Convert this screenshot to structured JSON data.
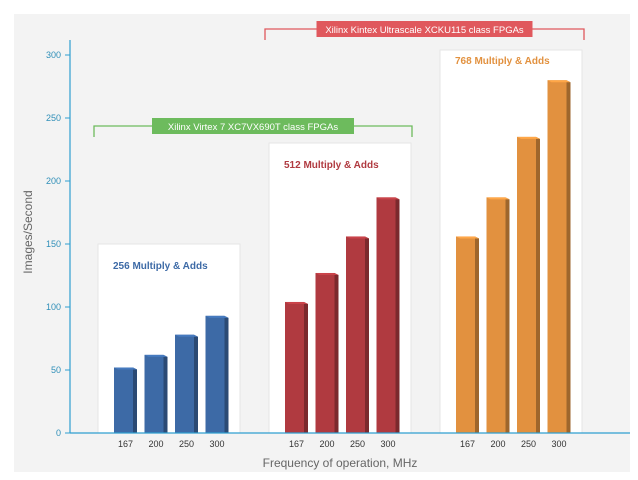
{
  "chart_data": {
    "type": "bar",
    "title": "",
    "xlabel": "Frequency of operation, MHz",
    "ylabel": "Images/Second",
    "ylim": [
      0,
      300
    ],
    "yticks": [
      0,
      50,
      100,
      150,
      200,
      250,
      300
    ],
    "grid": false,
    "groups": [
      {
        "name": "256 Multiply & Adds",
        "color": "#3d6aa6",
        "categories": [
          "167",
          "200",
          "250",
          "300"
        ],
        "values": [
          52,
          62,
          78,
          93
        ]
      },
      {
        "name": "512 Multiply & Adds",
        "color": "#b03a40",
        "categories": [
          "167",
          "200",
          "250",
          "300"
        ],
        "values": [
          104,
          127,
          156,
          187
        ]
      },
      {
        "name": "768 Multiply & Adds",
        "color": "#e2913f",
        "categories": [
          "167",
          "200",
          "250",
          "300"
        ],
        "values": [
          156,
          187,
          235,
          280
        ]
      }
    ],
    "brackets": [
      {
        "label": "Xilinx Virtex 7 XC7VX690T class FPGAs",
        "color": "#6dbb5d",
        "spans_groups": [
          0,
          1
        ]
      },
      {
        "label": "Xilinx Kintex Ultrascale XCKU115 class FPGAs",
        "color": "#e0585d",
        "spans_groups": [
          1,
          2
        ]
      }
    ]
  }
}
